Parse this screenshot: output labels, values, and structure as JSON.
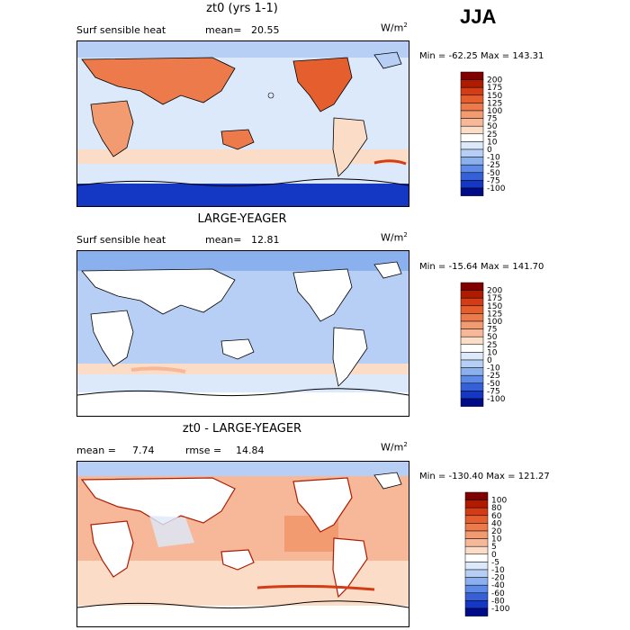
{
  "season": "JJA",
  "panels": [
    {
      "title": "zt0 (yrs 1-1)",
      "left_label": "Surf sensible heat",
      "stat_label": "mean=",
      "stat_value": "20.55",
      "stat2_label": "",
      "stat2_value": "",
      "units_base": "W/m",
      "units_exp": "2",
      "min_label": "Min =",
      "min_value": "-62.25",
      "max_label": "Max =",
      "max_value": "143.31",
      "colorbar": {
        "levels": [
          "200",
          "175",
          "150",
          "125",
          "100",
          "75",
          "50",
          "25",
          "10",
          "0",
          "-10",
          "-25",
          "-50",
          "-75",
          "-100"
        ],
        "colors": [
          "#800000",
          "#b01b00",
          "#d23c16",
          "#e55e2e",
          "#ec7a4a",
          "#f29a70",
          "#f6b898",
          "#fbdcc6",
          "#ffffff",
          "#dce9fb",
          "#b8cff5",
          "#8bb0ee",
          "#5c8ae6",
          "#3660d8",
          "#1538c4",
          "#000b8a"
        ]
      }
    },
    {
      "title": "LARGE-YEAGER",
      "left_label": "Surf sensible heat",
      "stat_label": "mean=",
      "stat_value": "12.81",
      "stat2_label": "",
      "stat2_value": "",
      "units_base": "W/m",
      "units_exp": "2",
      "min_label": "Min =",
      "min_value": "-15.64",
      "max_label": "Max =",
      "max_value": "141.70",
      "colorbar": {
        "levels": [
          "200",
          "175",
          "150",
          "125",
          "100",
          "75",
          "50",
          "25",
          "10",
          "0",
          "-10",
          "-25",
          "-50",
          "-75",
          "-100"
        ],
        "colors": [
          "#800000",
          "#b01b00",
          "#d23c16",
          "#e55e2e",
          "#ec7a4a",
          "#f29a70",
          "#f6b898",
          "#fbdcc6",
          "#ffffff",
          "#dce9fb",
          "#b8cff5",
          "#8bb0ee",
          "#5c8ae6",
          "#3660d8",
          "#1538c4",
          "#000b8a"
        ]
      }
    },
    {
      "title": "zt0 - LARGE-YEAGER",
      "left_label": "mean =",
      "stat_label": "",
      "stat_value": "7.74",
      "stat2_label": "rmse =",
      "stat2_value": "14.84",
      "units_base": "W/m",
      "units_exp": "2",
      "min_label": "Min =",
      "min_value": "-130.40",
      "max_label": "Max =",
      "max_value": "121.27",
      "colorbar": {
        "levels": [
          "100",
          "80",
          "60",
          "40",
          "20",
          "10",
          "5",
          "0",
          "-5",
          "-10",
          "-20",
          "-40",
          "-60",
          "-80",
          "-100"
        ],
        "colors": [
          "#800000",
          "#b01b00",
          "#d23c16",
          "#e55e2e",
          "#ec7a4a",
          "#f29a70",
          "#f6b898",
          "#fbdcc6",
          "#ffffff",
          "#dce9fb",
          "#b8cff5",
          "#8bb0ee",
          "#5c8ae6",
          "#3660d8",
          "#1538c4",
          "#000b8a"
        ]
      }
    }
  ],
  "chart_data": [
    {
      "type": "heatmap",
      "title": "zt0 (yrs 1-1)",
      "variable": "Surf sensible heat",
      "mean": 20.55,
      "min": -62.25,
      "max": 143.31,
      "units": "W/m2",
      "contour_levels": [
        -100,
        -75,
        -50,
        -25,
        -10,
        0,
        10,
        25,
        50,
        75,
        100,
        125,
        150,
        175,
        200
      ]
    },
    {
      "type": "heatmap",
      "title": "LARGE-YEAGER",
      "variable": "Surf sensible heat",
      "mean": 12.81,
      "min": -15.64,
      "max": 141.7,
      "units": "W/m2",
      "contour_levels": [
        -100,
        -75,
        -50,
        -25,
        -10,
        0,
        10,
        25,
        50,
        75,
        100,
        125,
        150,
        175,
        200
      ]
    },
    {
      "type": "heatmap",
      "title": "zt0 - LARGE-YEAGER",
      "mean": 7.74,
      "rmse": 14.84,
      "min": -130.4,
      "max": 121.27,
      "units": "W/m2",
      "contour_levels": [
        -100,
        -80,
        -60,
        -40,
        -20,
        -10,
        -5,
        0,
        5,
        10,
        20,
        40,
        60,
        80,
        100
      ]
    }
  ]
}
